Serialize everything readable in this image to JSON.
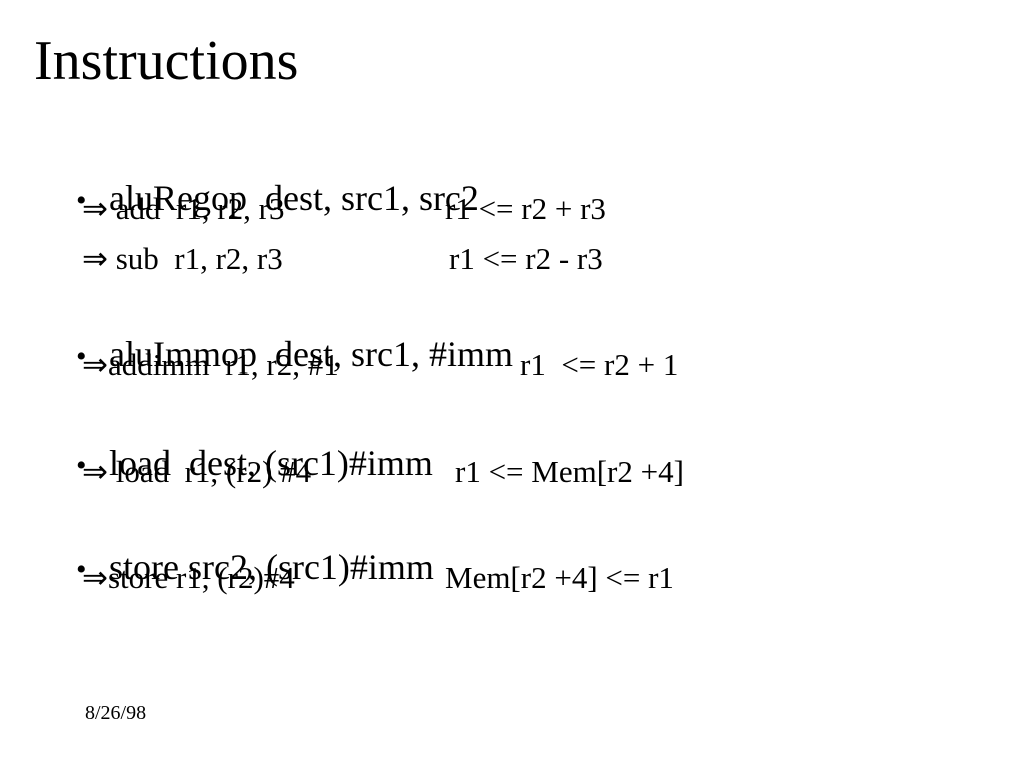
{
  "slide": {
    "title": "Instructions",
    "bullet_char": "•",
    "footer_date": "8/26/98",
    "colors": {
      "background": "#ffffff",
      "text": "#000000"
    },
    "sections": [
      {
        "heading": "aluRegop  dest, src1, src2",
        "lines": [
          {
            "code": "⇒ add  r1, r2, r3",
            "semantics": "r1 <= r2 + r3"
          },
          {
            "code": "⇒ sub  r1, r2, r3",
            "semantics": "r1 <= r2 - r3"
          }
        ]
      },
      {
        "heading": "aluImmop  dest, src1, #imm",
        "lines": [
          {
            "code": "⇒addimm  r1, r2, #1",
            "semantics": "r1  <= r2 + 1"
          }
        ]
      },
      {
        "heading": "load  dest, (src1)#imm",
        "lines": [
          {
            "code": "⇒ load  r1, (r2) #4",
            "semantics": "r1 <= Mem[r2 +4]"
          }
        ]
      },
      {
        "heading": "store src2, (src1)#imm",
        "lines": [
          {
            "code": "⇒store r1, (r2)#4",
            "semantics": "Mem[r2 +4] <= r1"
          }
        ]
      }
    ]
  }
}
